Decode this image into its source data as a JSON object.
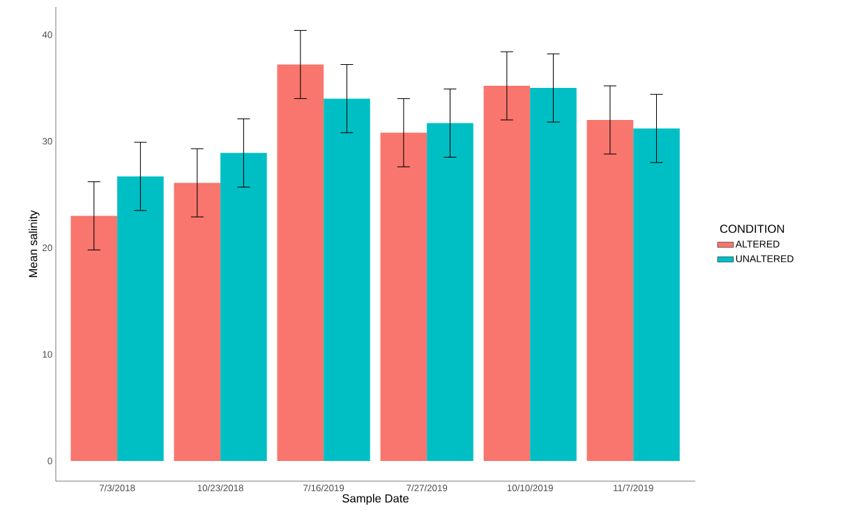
{
  "chart_data": {
    "type": "bar",
    "xlabel": "Sample Date",
    "ylabel": "Mean salinity",
    "legend_title": "CONDITION",
    "legend": "right",
    "grid": false,
    "categories": [
      "7/3/2018",
      "10/23/2018",
      "7/16/2019",
      "7/27/2019",
      "10/10/2019",
      "11/7/2019"
    ],
    "ylim": [
      -1.9,
      42.6
    ],
    "yticks": [
      0,
      10,
      20,
      30,
      40
    ],
    "series": [
      {
        "name": "ALTERED",
        "color": "#f8766d",
        "values": [
          23.0,
          26.1,
          37.2,
          30.8,
          35.2,
          32.0
        ],
        "errors": [
          3.2,
          3.2,
          3.2,
          3.2,
          3.2,
          3.2
        ]
      },
      {
        "name": "UNALTERED",
        "color": "#00bfc4",
        "values": [
          26.7,
          28.9,
          34.0,
          31.7,
          35.0,
          31.2
        ],
        "errors": [
          3.2,
          3.2,
          3.2,
          3.2,
          3.2,
          3.2
        ]
      }
    ]
  }
}
